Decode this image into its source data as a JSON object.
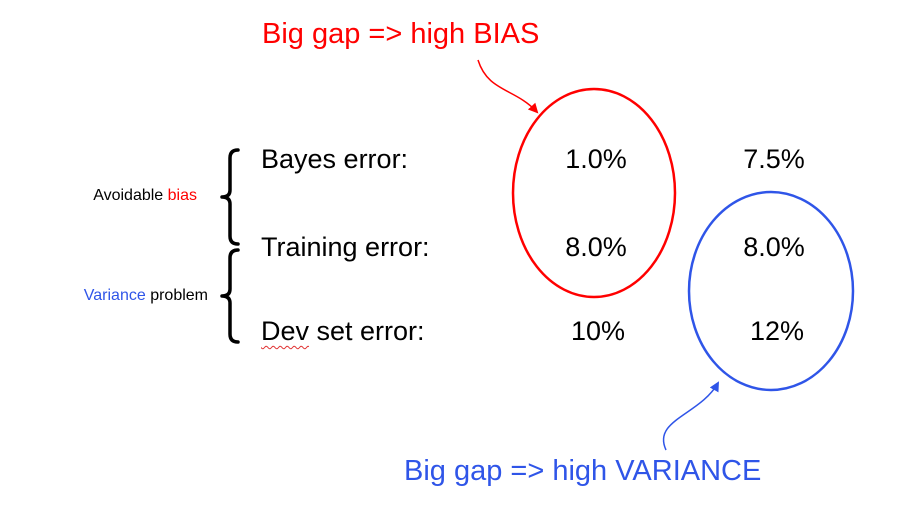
{
  "callouts": {
    "bias": "Big gap => high BIAS",
    "variance": "Big gap => high VARIANCE"
  },
  "rows": [
    {
      "label_word": "Bayes",
      "label_rest": " error:",
      "col1": "1.0%",
      "col2": "7.5%"
    },
    {
      "label_word": "Training",
      "label_rest": " error:",
      "col1": "8.0%",
      "col2": "8.0%"
    },
    {
      "label_word": "Dev",
      "label_rest": " set error:",
      "col1": "10%",
      "col2": "12%"
    }
  ],
  "brackets": {
    "bias": {
      "prefix": "Avoidable ",
      "highlight": "bias",
      "suffix": ""
    },
    "variance": {
      "prefix": "",
      "highlight": "Variance",
      "suffix": " problem"
    }
  },
  "colors": {
    "bias": "#ff0000",
    "variance": "#2f55e8",
    "text": "#000000"
  }
}
